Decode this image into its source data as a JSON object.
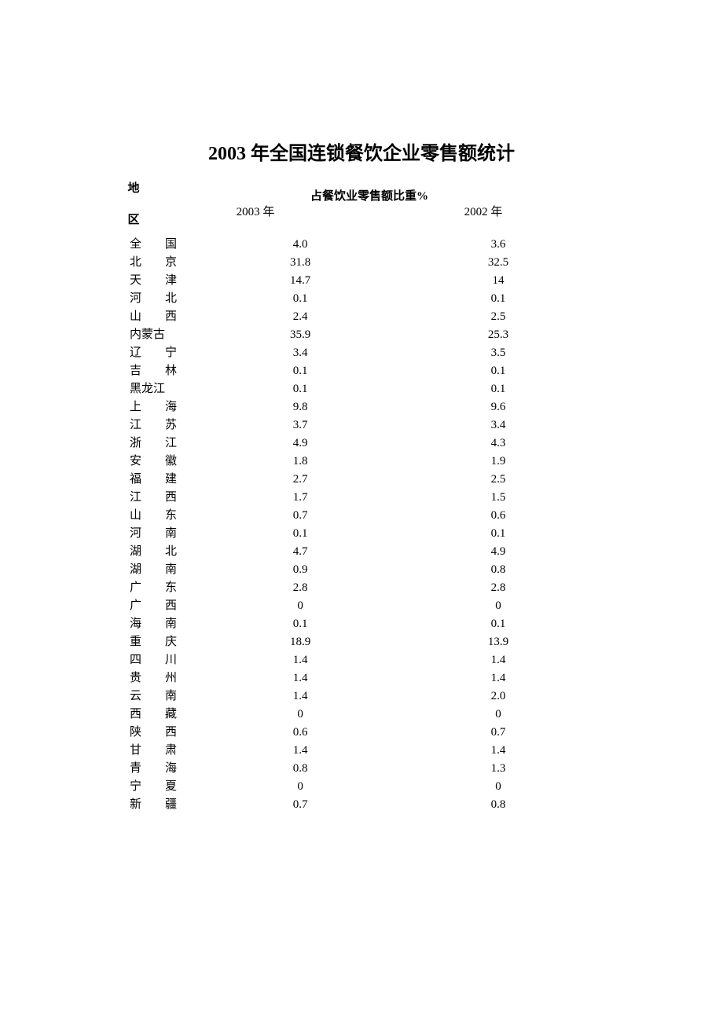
{
  "title": "2003 年全国连锁餐饮企业零售额统计",
  "table": {
    "region_header": "地区",
    "super_header": "占餐饮业零售额比重%",
    "col_2003": "2003 年",
    "col_2002": "2002 年",
    "region_col_width": 110,
    "value_col_width": 290,
    "title_fontsize": 24,
    "body_fontsize": 15,
    "rows": [
      {
        "region": "全　　国",
        "v2003": "4.0",
        "v2002": "3.6"
      },
      {
        "region": "北　　京",
        "v2003": "31.8",
        "v2002": "32.5"
      },
      {
        "region": "天　　津",
        "v2003": "14.7",
        "v2002": "14"
      },
      {
        "region": "河　　北",
        "v2003": "0.1",
        "v2002": "0.1"
      },
      {
        "region": "山　　西",
        "v2003": "2.4",
        "v2002": "2.5"
      },
      {
        "region": "内蒙古",
        "v2003": "35.9",
        "v2002": "25.3"
      },
      {
        "region": "辽　　宁",
        "v2003": "3.4",
        "v2002": "3.5"
      },
      {
        "region": "吉　　林",
        "v2003": "0.1",
        "v2002": "0.1"
      },
      {
        "region": "黑龙江",
        "v2003": "0.1",
        "v2002": "0.1"
      },
      {
        "region": "上　　海",
        "v2003": "9.8",
        "v2002": "9.6"
      },
      {
        "region": "江　　苏",
        "v2003": "3.7",
        "v2002": "3.4"
      },
      {
        "region": "浙　　江",
        "v2003": "4.9",
        "v2002": "4.3"
      },
      {
        "region": "安　　徽",
        "v2003": "1.8",
        "v2002": "1.9"
      },
      {
        "region": "福　　建",
        "v2003": "2.7",
        "v2002": "2.5"
      },
      {
        "region": "江　　西",
        "v2003": "1.7",
        "v2002": "1.5"
      },
      {
        "region": "山　　东",
        "v2003": "0.7",
        "v2002": "0.6"
      },
      {
        "region": "河　　南",
        "v2003": "0.1",
        "v2002": "0.1"
      },
      {
        "region": "湖　　北",
        "v2003": "4.7",
        "v2002": "4.9"
      },
      {
        "region": "湖　　南",
        "v2003": "0.9",
        "v2002": "0.8"
      },
      {
        "region": "广　　东",
        "v2003": "2.8",
        "v2002": "2.8"
      },
      {
        "region": "广　　西",
        "v2003": "0",
        "v2002": "0"
      },
      {
        "region": "海　　南",
        "v2003": "0.1",
        "v2002": "0.1"
      },
      {
        "region": "重　　庆",
        "v2003": "18.9",
        "v2002": "13.9"
      },
      {
        "region": "四　　川",
        "v2003": "1.4",
        "v2002": "1.4"
      },
      {
        "region": "贵　　州",
        "v2003": "1.4",
        "v2002": "1.4"
      },
      {
        "region": "云　　南",
        "v2003": "1.4",
        "v2002": "2.0"
      },
      {
        "region": "西　　藏",
        "v2003": "0",
        "v2002": "0"
      },
      {
        "region": "陕　　西",
        "v2003": "0.6",
        "v2002": "0.7"
      },
      {
        "region": "甘　　肃",
        "v2003": "1.4",
        "v2002": "1.4"
      },
      {
        "region": "青　　海",
        "v2003": "0.8",
        "v2002": "1.3"
      },
      {
        "region": "宁　　夏",
        "v2003": "0",
        "v2002": "0"
      },
      {
        "region": "新　　疆",
        "v2003": "0.7",
        "v2002": "0.8"
      }
    ]
  },
  "colors": {
    "background": "#ffffff",
    "text": "#000000"
  }
}
